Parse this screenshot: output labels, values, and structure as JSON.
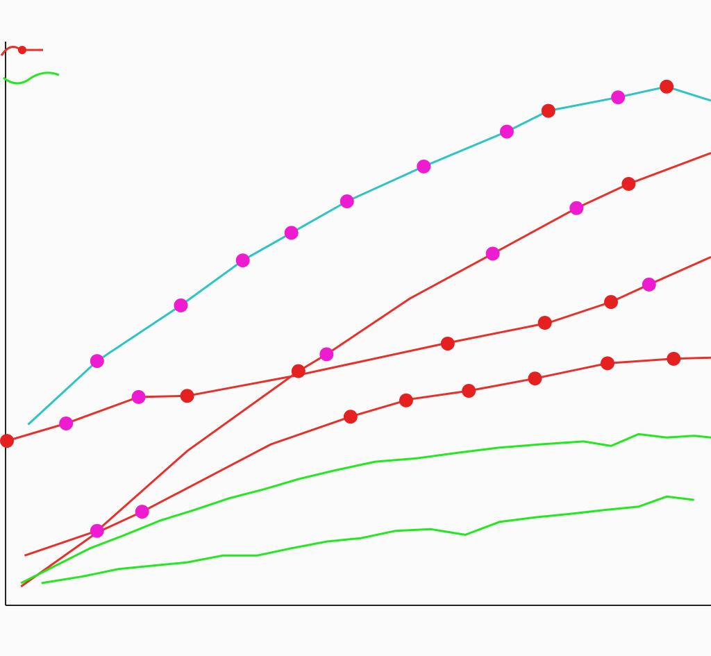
{
  "chart_data": {
    "type": "line",
    "xlim": [
      0,
      100
    ],
    "ylim": [
      0,
      100
    ],
    "grid": false,
    "series": [
      {
        "color": "#2ec4c4",
        "mode": "line",
        "x": [
          3,
          12.8,
          24.7,
          33.5,
          40.4,
          48.3,
          59.2,
          71,
          76.9,
          86.8,
          93.7,
          100
        ],
        "values": [
          31.9,
          43.2,
          53.1,
          61.1,
          66,
          71.6,
          77.8,
          84,
          87.7,
          90.1,
          92,
          89.5
        ]
      },
      {
        "color": "#e8302a",
        "mode": "line",
        "x": [
          2.5,
          12.8,
          25.6,
          41.4,
          45.4,
          57.2,
          69,
          80.9,
          88.3,
          100
        ],
        "values": [
          8.6,
          13,
          27.2,
          41.4,
          44.4,
          54.3,
          62.3,
          70.4,
          74.7,
          80.2
        ]
      },
      {
        "color": "#e8302a",
        "mode": "line",
        "x": [
          0,
          8.4,
          18.7,
          25.6,
          41.4,
          62.1,
          76.9,
          85.8,
          91.2,
          100
        ],
        "values": [
          29,
          32.1,
          36.8,
          37,
          40.7,
          46.3,
          50,
          53.7,
          56.8,
          61.7
        ]
      },
      {
        "color": "#e8302a",
        "mode": "line",
        "x": [
          2,
          12.8,
          19.2,
          37.5,
          48.8,
          57.2,
          65.6,
          75,
          85.3,
          94.7,
          100
        ],
        "values": [
          3.1,
          12.7,
          16.4,
          28.4,
          33.3,
          36.4,
          37.9,
          40.1,
          42.8,
          43.6,
          43.8
        ]
      },
      {
        "color": "#22e81e",
        "mode": "line",
        "x": [
          2,
          6.9,
          11.8,
          16.8,
          21.7,
          26.6,
          31.6,
          36.5,
          41.4,
          46.4,
          52.3,
          58.2,
          64.1,
          70,
          75.9,
          81.9,
          85.8,
          89.7,
          93.7,
          97.6,
          100
        ],
        "values": [
          3.7,
          6.8,
          9.9,
          12.3,
          14.8,
          16.7,
          18.8,
          20.4,
          22.2,
          23.7,
          25.3,
          25.9,
          26.9,
          27.8,
          28.4,
          28.9,
          28.1,
          30.2,
          29.6,
          29.9,
          29.6
        ]
      },
      {
        "color": "#22e81e",
        "mode": "line",
        "x": [
          4.9,
          10.8,
          15.8,
          20.7,
          25.6,
          30.6,
          35.5,
          40.4,
          45.4,
          50.3,
          55.2,
          60.2,
          65.1,
          70,
          75,
          79.9,
          84.8,
          89.7,
          93.7,
          97.6
        ],
        "values": [
          3.7,
          4.9,
          6.2,
          6.8,
          7.4,
          8.6,
          8.6,
          9.9,
          11.1,
          11.7,
          13,
          13.3,
          12.3,
          14.6,
          15.4,
          16,
          16.7,
          17.3,
          19.1,
          18.5
        ]
      },
      {
        "color": "#ee1cd0",
        "mode": "markers",
        "x": [
          12.8,
          24.7,
          33.5,
          40.4,
          48.3,
          59.2,
          71,
          86.8,
          12.8,
          19.2,
          45.4,
          69,
          80.9,
          91.2,
          18.7,
          8.4
        ],
        "values": [
          43.2,
          53.1,
          61.1,
          66,
          71.6,
          77.8,
          84,
          90.1,
          13,
          16.4,
          44.4,
          62.3,
          70.4,
          56.8,
          36.8,
          32.1
        ]
      },
      {
        "color": "#e52020",
        "mode": "markers",
        "x": [
          76.9,
          93.7,
          88.3,
          41.4,
          0,
          25.6,
          62.6,
          76.4,
          85.8,
          48.8,
          56.7,
          65.6,
          75,
          85.3,
          94.7
        ],
        "values": [
          87.7,
          92,
          74.7,
          41.4,
          29,
          37,
          46.3,
          50,
          53.7,
          33.3,
          36.2,
          37.9,
          40.1,
          42.8,
          43.6
        ]
      }
    ]
  }
}
